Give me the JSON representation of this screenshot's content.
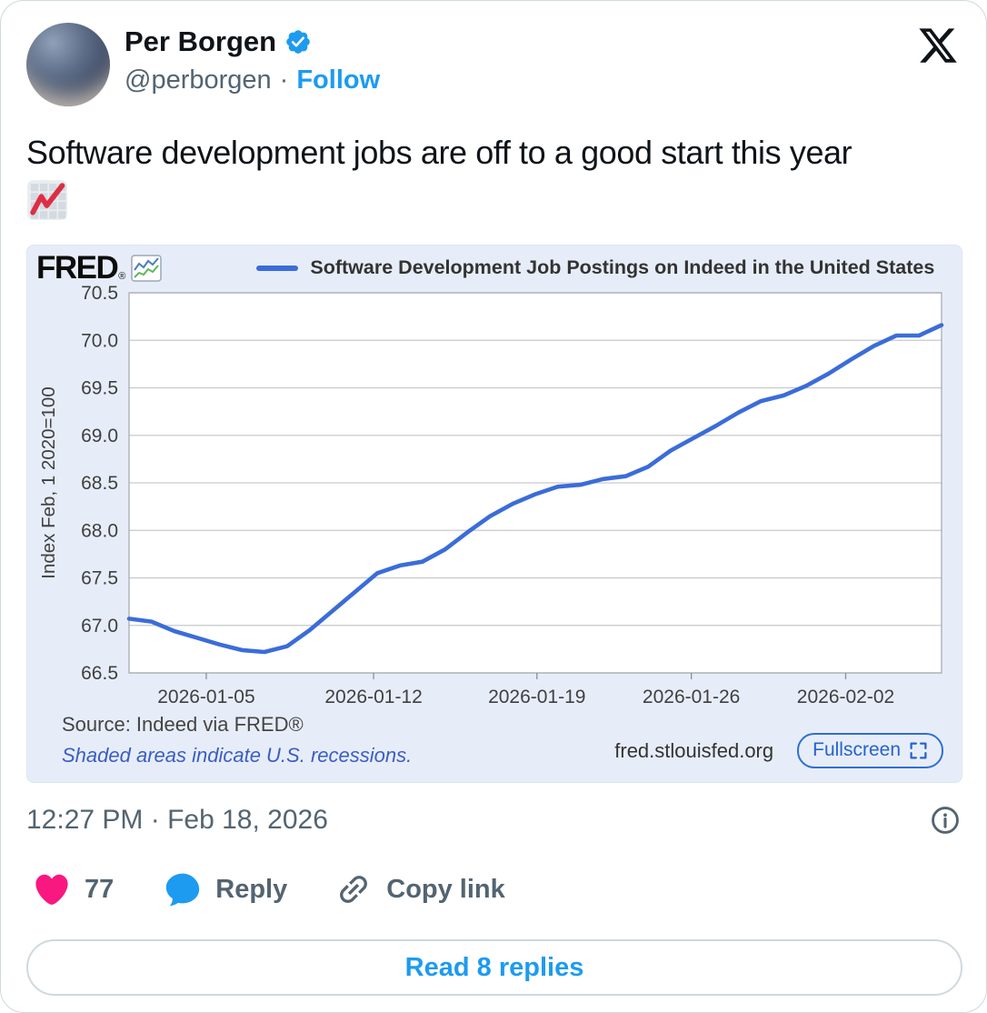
{
  "header": {
    "display_name": "Per Borgen",
    "handle": "@perborgen",
    "separator": "·",
    "follow_label": "Follow"
  },
  "tweet": {
    "text": "Software development jobs are off to a good start this year",
    "emoji": "chart-increasing"
  },
  "chart_card": {
    "brand": "FRED",
    "brand_reg": "®",
    "source_line": "Source: Indeed via FRED®",
    "recessions_note": "Shaded areas indicate U.S. recessions.",
    "site_link": "fred.stlouisfed.org",
    "fullscreen_label": "Fullscreen"
  },
  "chart_data": {
    "type": "line",
    "title": "Software Development Job Postings on Indeed in the United States",
    "xlabel": "",
    "ylabel": "Index Feb, 1 2020=100",
    "ylim": [
      66.5,
      70.5
    ],
    "y_ticks": [
      70.5,
      70.0,
      69.5,
      69.0,
      68.5,
      68.0,
      67.5,
      67.0,
      66.5
    ],
    "x_tick_labels": [
      "2026-01-05",
      "2026-01-12",
      "2026-01-19",
      "2026-01-26",
      "2026-02-02"
    ],
    "x_tick_pos": [
      0.095,
      0.301,
      0.502,
      0.692,
      0.882
    ],
    "grid": true,
    "legend_position": "top",
    "line_color": "#3b6cd9",
    "series": [
      {
        "name": "Software Development Job Postings on Indeed in the United States",
        "x": [
          "2026-01-02",
          "2026-01-03",
          "2026-01-04",
          "2026-01-05",
          "2026-01-06",
          "2026-01-07",
          "2026-01-08",
          "2026-01-09",
          "2026-01-10",
          "2026-01-11",
          "2026-01-12",
          "2026-01-13",
          "2026-01-14",
          "2026-01-15",
          "2026-01-16",
          "2026-01-17",
          "2026-01-18",
          "2026-01-19",
          "2026-01-20",
          "2026-01-21",
          "2026-01-22",
          "2026-01-23",
          "2026-01-24",
          "2026-01-25",
          "2026-01-26",
          "2026-01-27",
          "2026-01-28",
          "2026-01-29",
          "2026-01-30",
          "2026-01-31",
          "2026-02-01",
          "2026-02-02",
          "2026-02-03",
          "2026-02-04",
          "2026-02-05",
          "2026-02-06",
          "2026-02-07"
        ],
        "values": [
          67.07,
          67.04,
          66.94,
          66.87,
          66.8,
          66.74,
          66.72,
          66.78,
          66.95,
          67.15,
          67.35,
          67.55,
          67.63,
          67.67,
          67.8,
          67.98,
          68.15,
          68.28,
          68.38,
          68.46,
          68.48,
          68.54,
          68.57,
          68.67,
          68.84,
          68.97,
          69.1,
          69.24,
          69.36,
          69.42,
          69.52,
          69.65,
          69.8,
          69.94,
          70.05,
          70.05,
          70.16
        ]
      }
    ]
  },
  "meta": {
    "timestamp": "12:27 PM · Feb 18, 2026"
  },
  "engagement": {
    "like_count": "77",
    "reply_label": "Reply",
    "copy_link_label": "Copy link"
  },
  "footer": {
    "read_replies_label": "Read 8 replies"
  },
  "icons": {
    "verified_badge": "blue-check-seal",
    "x_logo": "x-letter-logo",
    "fred_icon": "fred-graph-lines",
    "like": "heart",
    "reply": "speech-bubble",
    "copy_link": "chain-link",
    "info": "info-circle",
    "fullscreen": "expand-corner-brackets",
    "tweet_emoji": "chart-increasing"
  },
  "colors": {
    "accent_blue": "#1d9bf0",
    "like_pink": "#f91880",
    "text_primary": "#0f1419",
    "text_secondary": "#536471",
    "chart_line": "#3b6cd9",
    "chart_card_bg": "#e7edf8",
    "recessions_note_blue": "#3b5dc4",
    "fullscreen_blue": "#2563cf",
    "border_grey": "#cfd9de",
    "emoji_red": "#dd2e44"
  }
}
